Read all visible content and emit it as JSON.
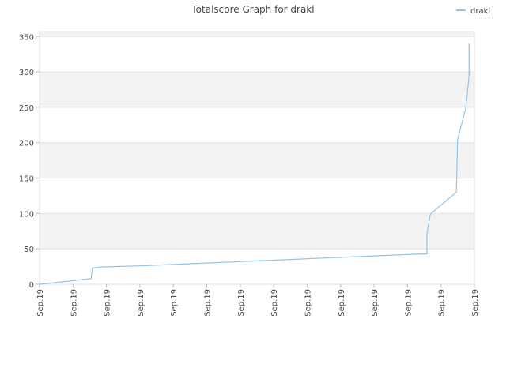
{
  "chart_data": {
    "type": "line",
    "title": "Totalscore Graph for drakl",
    "x": [
      0,
      0.8,
      1.54,
      1.58,
      1.89,
      3,
      4,
      5,
      6,
      7,
      8,
      9,
      10,
      11,
      11.58,
      11.58,
      11.68,
      12.46,
      12.5,
      12.74,
      12.84,
      12.84
    ],
    "series": [
      {
        "name": "drakl",
        "color": "#8fc3ec",
        "values": [
          0,
          4,
          8,
          23,
          24.5,
          26,
          28,
          30,
          32,
          34,
          36,
          38,
          40,
          42,
          43,
          71,
          99,
          130,
          205,
          248,
          293,
          340
        ]
      }
    ],
    "xlim": [
      0,
      13
    ],
    "xticks": [
      {
        "value": 0,
        "label": "Sep.19"
      },
      {
        "value": 1,
        "label": "Sep.19"
      },
      {
        "value": 2,
        "label": "Sep.19"
      },
      {
        "value": 3,
        "label": "Sep.19"
      },
      {
        "value": 4,
        "label": "Sep.19"
      },
      {
        "value": 5,
        "label": "Sep.19"
      },
      {
        "value": 6,
        "label": "Sep.19"
      },
      {
        "value": 7,
        "label": "Sep.19"
      },
      {
        "value": 8,
        "label": "Sep.19"
      },
      {
        "value": 9,
        "label": "Sep.19"
      },
      {
        "value": 10,
        "label": "Sep.19"
      },
      {
        "value": 11,
        "label": "Sep.19"
      },
      {
        "value": 12,
        "label": "Sep.19"
      },
      {
        "value": 13,
        "label": "Sep.19"
      }
    ],
    "ylim": [
      0,
      357
    ],
    "yticks": [
      0,
      50,
      100,
      150,
      200,
      250,
      300,
      350
    ],
    "grid": true
  }
}
